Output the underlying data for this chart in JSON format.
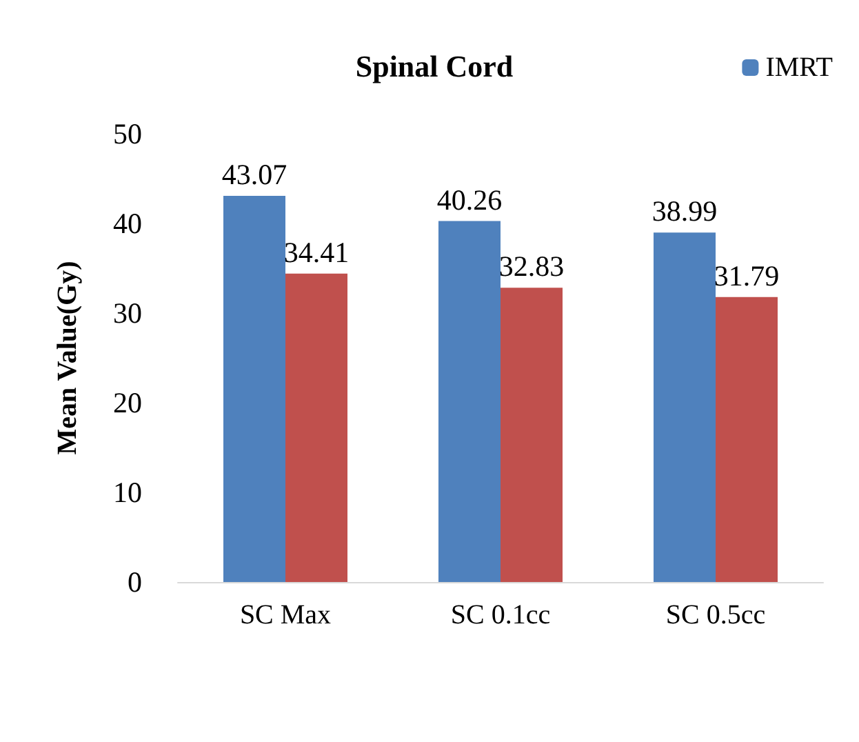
{
  "chart_data": {
    "type": "bar",
    "title": "Spinal Cord",
    "ylabel": "Mean Value(Gy)",
    "categories": [
      "SC Max",
      "SC 0.1cc",
      "SC 0.5cc"
    ],
    "series": [
      {
        "name": "IMRT",
        "color": "#4f81bd",
        "values": [
          43.07,
          40.26,
          38.99
        ]
      },
      {
        "color": "#c0504d",
        "values": [
          34.41,
          32.83,
          31.79
        ]
      }
    ],
    "ylim": [
      0,
      50
    ],
    "yticks": [
      0,
      10,
      20,
      30,
      40,
      50
    ],
    "grid": false,
    "legend": "top right",
    "data_labels": true
  }
}
